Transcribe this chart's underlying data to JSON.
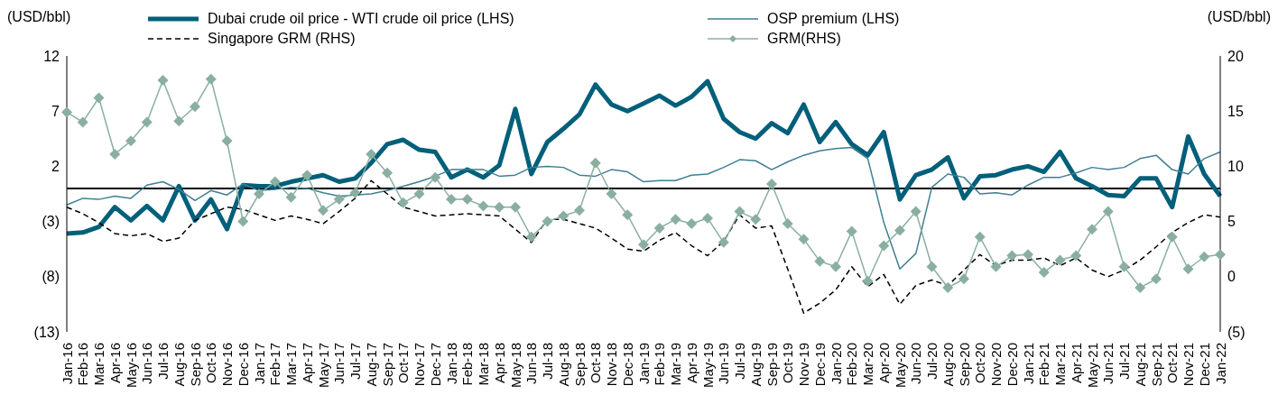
{
  "chart_data": {
    "type": "line",
    "ylabel": "(USD/bbl)",
    "y2label": "(USD/bbl)",
    "categories": [
      "Jan-16",
      "Feb-16",
      "Mar-16",
      "Apr-16",
      "May-16",
      "Jun-16",
      "Jul-16",
      "Aug-16",
      "Sep-16",
      "Oct-16",
      "Nov-16",
      "Dec-16",
      "Jan-17",
      "Feb-17",
      "Mar-17",
      "Apr-17",
      "May-17",
      "Jun-17",
      "Jul-17",
      "Aug-17",
      "Sep-17",
      "Oct-17",
      "Nov-17",
      "Dec-17",
      "Jan-18",
      "Feb-18",
      "Mar-18",
      "Apr-18",
      "May-18",
      "Jun-18",
      "Jul-18",
      "Aug-18",
      "Sep-18",
      "Oct-18",
      "Nov-18",
      "Dec-18",
      "Jan-19",
      "Feb-19",
      "Mar-19",
      "Apr-19",
      "May-19",
      "Jun-19",
      "Jul-19",
      "Aug-19",
      "Sep-19",
      "Oct-19",
      "Nov-19",
      "Dec-19",
      "Jan-20",
      "Feb-20",
      "Mar-20",
      "Apr-20",
      "May-20",
      "Jun-20",
      "Jul-20",
      "Aug-20",
      "Sep-20",
      "Oct-20",
      "Nov-20",
      "Dec-20",
      "Jan-21",
      "Feb-21",
      "Mar-21",
      "Apr-21",
      "May-21",
      "Jun-21",
      "Jul-21",
      "Aug-21",
      "Sep-21",
      "Oct-21",
      "Nov-21",
      "Dec-21",
      "Jan-22"
    ],
    "series": [
      {
        "name": "Dubai crude oil price - WTI crude oil price (LHS)",
        "color": "#005f7a",
        "axis": "y",
        "line_style": "solid",
        "marker": "none",
        "values": [
          -4.1,
          -4.0,
          -3.5,
          -1.7,
          -2.9,
          -1.6,
          -2.9,
          0.2,
          -2.9,
          -1.0,
          -3.7,
          0.3,
          0.2,
          0.2,
          0.6,
          0.9,
          1.2,
          0.6,
          0.9,
          2.3,
          4.0,
          4.4,
          3.5,
          3.3,
          1.0,
          1.7,
          1.0,
          2.1,
          7.2,
          1.3,
          4.2,
          5.4,
          6.7,
          9.4,
          7.6,
          7.0,
          7.7,
          8.4,
          7.5,
          8.3,
          9.7,
          6.3,
          5.1,
          4.5,
          5.9,
          5.0,
          7.6,
          4.2,
          6.0,
          4.0,
          3.0,
          5.1,
          -1.0,
          1.2,
          1.7,
          2.8,
          -0.9,
          1.1,
          1.2,
          1.7,
          2.0,
          1.5,
          3.3,
          0.9,
          0.2,
          -0.6,
          -0.7,
          0.9,
          0.9,
          -1.7,
          4.7,
          1.3,
          -0.7
        ]
      },
      {
        "name": "OSP premium (LHS)",
        "color": "#3f7f93",
        "axis": "y",
        "line_style": "solid",
        "marker": "none",
        "values": [
          -1.5,
          -0.9,
          -1.0,
          -0.7,
          -0.9,
          0.3,
          0.6,
          -0.1,
          -1.1,
          -0.2,
          -0.6,
          0.4,
          -0.2,
          -0.1,
          0.1,
          0,
          -0.4,
          -0.7,
          -0.6,
          -0.5,
          -0.2,
          0.2,
          0.6,
          1.1,
          1.7,
          1.7,
          1.7,
          1.1,
          1.2,
          1.9,
          2.0,
          1.9,
          1.2,
          1.1,
          1.7,
          1.5,
          0.6,
          0.7,
          0.7,
          1.2,
          1.3,
          1.9,
          2.6,
          2.5,
          1.7,
          2.4,
          3.0,
          3.4,
          3.6,
          3.7,
          2.7,
          -3.1,
          -7.3,
          -5.9,
          0.1,
          1.3,
          1.0,
          -0.5,
          -0.4,
          -0.6,
          0.3,
          1.0,
          1.0,
          1.4,
          1.9,
          1.7,
          1.9,
          2.7,
          3.0,
          1.7,
          1.3,
          2.7,
          3.3
        ]
      },
      {
        "name": "Singapore GRM (RHS)",
        "color": "#000000",
        "axis": "y2",
        "line_style": "dashed",
        "marker": "none",
        "values": [
          6.3,
          5.7,
          4.9,
          3.9,
          3.7,
          3.9,
          3.2,
          3.5,
          5.1,
          5.7,
          6.3,
          6.1,
          5.6,
          5.1,
          5.5,
          5.2,
          4.8,
          5.9,
          7.1,
          8.7,
          7.5,
          6.3,
          5.9,
          5.5,
          5.6,
          5.7,
          5.6,
          5.5,
          4.3,
          3.1,
          5.2,
          5.2,
          4.8,
          4.4,
          3.5,
          2.5,
          2.3,
          3.3,
          4.0,
          2.8,
          1.9,
          3.2,
          5.6,
          4.4,
          4.6,
          0.7,
          -3.3,
          -2.4,
          -1.2,
          0.9,
          -0.9,
          0.2,
          -2.5,
          -0.8,
          -0.3,
          -0.8,
          0.6,
          2.0,
          1.0,
          1.5,
          1.5,
          1.7,
          1.0,
          1.7,
          0.6,
          0,
          0.6,
          1.5,
          2.7,
          4.0,
          4.9,
          5.6,
          5.4
        ]
      },
      {
        "name": "GRM(RHS)",
        "color": "#8aafa0",
        "axis": "y2",
        "line_style": "solid",
        "marker": "diamond",
        "values": [
          14.9,
          14.0,
          16.2,
          11.1,
          12.3,
          14.0,
          17.8,
          14.1,
          15.4,
          17.9,
          12.3,
          5.0,
          7.5,
          8.6,
          7.2,
          9.2,
          6.0,
          7.0,
          7.6,
          11.1,
          9.4,
          6.7,
          7.5,
          9.0,
          7.0,
          7.0,
          6.4,
          6.3,
          6.3,
          3.6,
          5.0,
          5.5,
          6.0,
          10.3,
          7.5,
          5.6,
          2.9,
          4.4,
          5.2,
          4.8,
          5.3,
          3.1,
          5.9,
          5.2,
          8.4,
          4.8,
          3.4,
          1.4,
          0.9,
          4.1,
          -0.4,
          2.8,
          4.2,
          5.9,
          0.9,
          -1.0,
          -0.2,
          3.6,
          0.9,
          1.9,
          2.0,
          0.4,
          1.5,
          1.9,
          4.3,
          5.9,
          0.9,
          -1.0,
          -0.2,
          3.6,
          0.7,
          1.8,
          2.0
        ]
      }
    ],
    "ylim": [
      -13,
      12
    ],
    "yticks": [
      12,
      7,
      2,
      {
        "value": -3,
        "label": "(3)"
      },
      {
        "value": -8,
        "label": "(8)"
      },
      {
        "value": -13,
        "label": "(13)"
      }
    ],
    "y2lim": [
      -5,
      20
    ],
    "y2ticks": [
      20,
      15,
      10,
      5,
      0,
      {
        "value": -5,
        "label": "(5)"
      }
    ],
    "ref_lines": [
      {
        "axis": "y",
        "value": 0,
        "color": "#000000"
      }
    ],
    "grid": false,
    "legend": "top"
  }
}
